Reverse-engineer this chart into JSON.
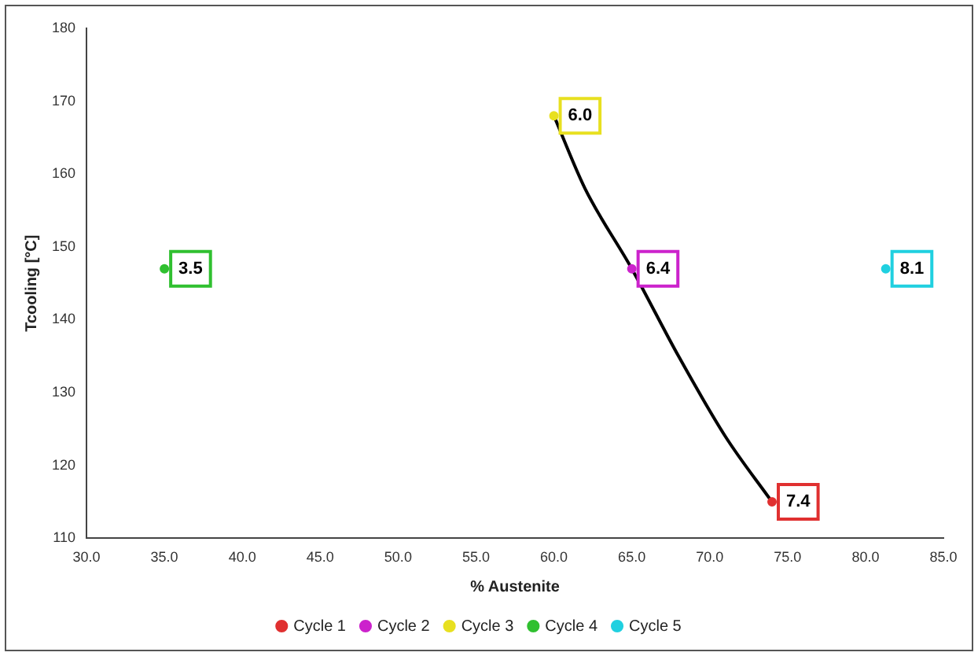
{
  "chart_data": {
    "type": "scatter",
    "xlabel": "% Austenite",
    "ylabel": "Tcooling [°C]",
    "xlim": [
      30,
      85
    ],
    "xticks": [
      {
        "value": 30,
        "label": "30.0"
      },
      {
        "value": 35,
        "label": "35.0"
      },
      {
        "value": 40,
        "label": "40.0"
      },
      {
        "value": 45,
        "label": "45.0"
      },
      {
        "value": 50,
        "label": "50.0"
      },
      {
        "value": 55,
        "label": "55.0"
      },
      {
        "value": 60,
        "label": "60.0"
      },
      {
        "value": 65,
        "label": "65.0"
      },
      {
        "value": 70,
        "label": "70.0"
      },
      {
        "value": 75,
        "label": "75.0"
      },
      {
        "value": 80,
        "label": "80.0"
      },
      {
        "value": 85,
        "label": "85.0"
      }
    ],
    "ylim": [
      110,
      180
    ],
    "yticks": [
      110,
      120,
      130,
      140,
      150,
      160,
      170,
      180
    ],
    "series": [
      {
        "name": "Cycle 1",
        "color": "#e03030",
        "x": [
          74
        ],
        "values": [
          115
        ]
      },
      {
        "name": "Cycle 2",
        "color": "#cc22cc",
        "x": [
          65
        ],
        "values": [
          147
        ]
      },
      {
        "name": "Cycle 3",
        "color": "#e8e020",
        "x": [
          60
        ],
        "values": [
          168
        ]
      },
      {
        "name": "Cycle 4",
        "color": "#30c030",
        "x": [
          35
        ],
        "values": [
          147
        ]
      },
      {
        "name": "Cycle 5",
        "color": "#20d0e0",
        "x": [
          81.3
        ],
        "values": [
          147
        ]
      },
      {
        "type": "line",
        "color": "#000000",
        "marker": "none",
        "x": [
          60,
          62,
          65,
          68,
          71,
          74
        ],
        "values": [
          168,
          158,
          147,
          135,
          124,
          115
        ]
      }
    ],
    "annotations": [
      {
        "text": "7.4",
        "x": 74,
        "y": 115
      },
      {
        "text": "6.4",
        "x": 65,
        "y": 147
      },
      {
        "text": "6.0",
        "x": 60,
        "y": 168
      },
      {
        "text": "3.5",
        "x": 35,
        "y": 147
      },
      {
        "text": "8.1",
        "x": 81.3,
        "y": 147
      }
    ],
    "marker": "circle",
    "grid": false,
    "legend": "bottom"
  }
}
